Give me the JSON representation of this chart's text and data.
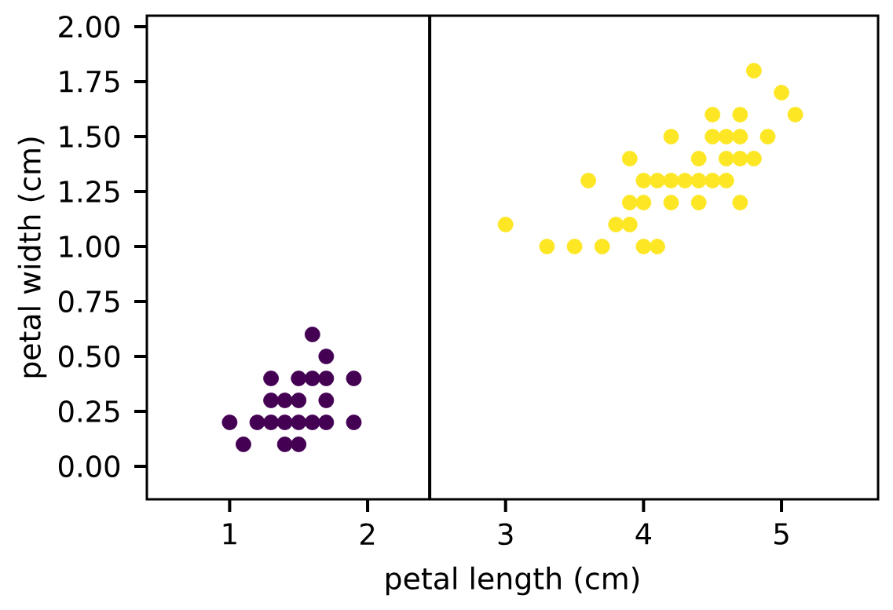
{
  "chart_data": {
    "type": "scatter",
    "xlabel": "petal length (cm)",
    "ylabel": "petal width (cm)",
    "xlim": [
      0.4,
      5.7
    ],
    "ylim": [
      -0.15,
      2.05
    ],
    "xticks": [
      1,
      2,
      3,
      4,
      5
    ],
    "yticks": [
      {
        "value": 0,
        "label": "0.00"
      },
      {
        "value": 0.25,
        "label": "0.25"
      },
      {
        "value": 0.5,
        "label": "0.50"
      },
      {
        "value": 0.75,
        "label": "0.75"
      },
      {
        "value": 1,
        "label": "1.00"
      },
      {
        "value": 1.25,
        "label": "1.25"
      },
      {
        "value": 1.5,
        "label": "1.50"
      },
      {
        "value": 1.75,
        "label": "1.75"
      },
      {
        "value": 2,
        "label": "2.00"
      }
    ],
    "marker": "circle",
    "series": [
      {
        "color": "#440154",
        "x": [
          1.0,
          1.1,
          1.2,
          1.3,
          1.3,
          1.3,
          1.4,
          1.4,
          1.4,
          1.5,
          1.5,
          1.5,
          1.5,
          1.6,
          1.6,
          1.6,
          1.7,
          1.7,
          1.7,
          1.7,
          1.9,
          1.9
        ],
        "values": [
          0.2,
          0.1,
          0.2,
          0.2,
          0.3,
          0.4,
          0.1,
          0.2,
          0.3,
          0.1,
          0.2,
          0.3,
          0.4,
          0.2,
          0.4,
          0.6,
          0.2,
          0.3,
          0.4,
          0.5,
          0.2,
          0.4
        ]
      },
      {
        "color": "#fde725",
        "x": [
          3.0,
          3.3,
          3.5,
          3.6,
          3.7,
          3.8,
          3.9,
          3.9,
          3.9,
          4.0,
          4.0,
          4.0,
          4.1,
          4.1,
          4.2,
          4.2,
          4.2,
          4.3,
          4.4,
          4.4,
          4.4,
          4.5,
          4.5,
          4.5,
          4.6,
          4.6,
          4.6,
          4.7,
          4.7,
          4.7,
          4.7,
          4.8,
          4.8,
          4.9,
          5.0,
          5.1
        ],
        "values": [
          1.1,
          1.0,
          1.0,
          1.3,
          1.0,
          1.1,
          1.1,
          1.2,
          1.4,
          1.0,
          1.2,
          1.3,
          1.0,
          1.3,
          1.2,
          1.3,
          1.5,
          1.3,
          1.2,
          1.3,
          1.4,
          1.3,
          1.5,
          1.6,
          1.3,
          1.4,
          1.5,
          1.2,
          1.4,
          1.5,
          1.6,
          1.4,
          1.8,
          1.5,
          1.7,
          1.6
        ]
      }
    ],
    "ref_lines": [
      {
        "axis": "x",
        "value": 2.45,
        "color": "#000000"
      }
    ]
  }
}
